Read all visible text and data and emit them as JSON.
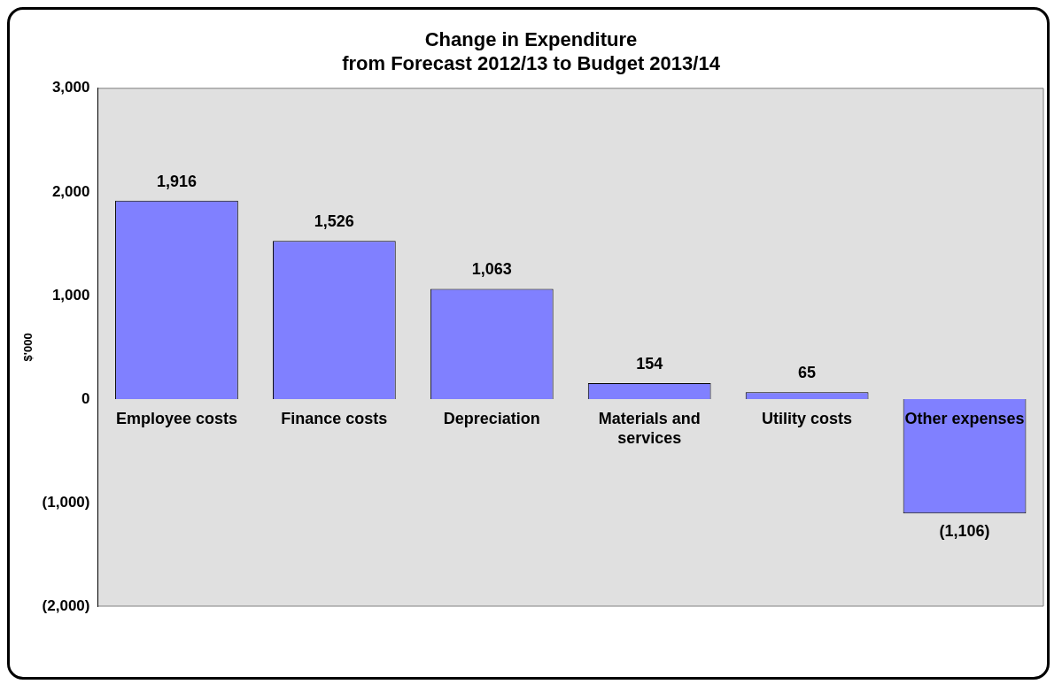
{
  "chart_data": {
    "type": "bar",
    "title": [
      "Change in Expenditure",
      "from Forecast 2012/13 to Budget 2013/14"
    ],
    "ylabel": "$'000",
    "categories": [
      "Employee costs",
      "Finance costs",
      "Depreciation",
      "Materials and services",
      "Utility costs",
      "Other expenses"
    ],
    "values": [
      1916,
      1526,
      1063,
      154,
      65,
      -1106
    ],
    "value_labels": [
      "1,916",
      "1,526",
      "1,063",
      "154",
      "65",
      "(1,106)"
    ],
    "color": "#8080ff",
    "ylim": [
      -2000,
      3000
    ],
    "yticks": [
      {
        "value": -2000,
        "label": "(2,000)"
      },
      {
        "value": -1000,
        "label": "(1,000)"
      },
      0,
      {
        "value": 1000,
        "label": "1,000"
      },
      {
        "value": 2000,
        "label": "2,000"
      },
      {
        "value": 3000,
        "label": "3,000"
      }
    ],
    "grid": false,
    "legend": false
  }
}
